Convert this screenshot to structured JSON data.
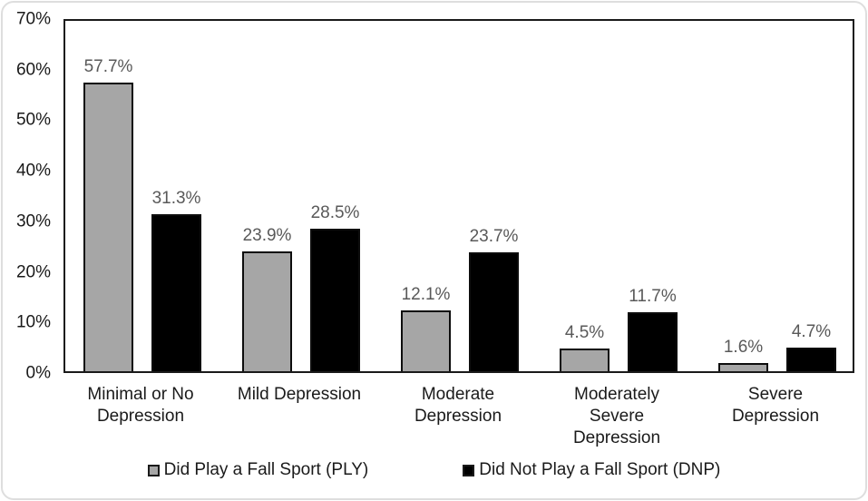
{
  "chart_data": {
    "type": "bar",
    "title": "",
    "categories": [
      "Minimal or No Depression",
      "Mild Depression",
      "Moderate Depression",
      "Moderately Severe Depression",
      "Severe Depression"
    ],
    "category_label_lines": [
      [
        "Minimal or No",
        "Depression"
      ],
      [
        "Mild Depression"
      ],
      [
        "Moderate",
        "Depression"
      ],
      [
        "Moderately",
        "Severe",
        "Depression"
      ],
      [
        "Severe",
        "Depression"
      ]
    ],
    "series": [
      {
        "name": "Did Play a Fall Sport (PLY)",
        "color": "#A6A6A6",
        "values": [
          57.7,
          23.9,
          12.1,
          4.5,
          1.6
        ],
        "labels": [
          "57.7%",
          "23.9%",
          "12.1%",
          "4.5%",
          "1.6%"
        ]
      },
      {
        "name": "Did Not Play a Fall Sport (DNP)",
        "color": "#000000",
        "values": [
          31.3,
          28.5,
          23.7,
          11.7,
          4.7
        ],
        "labels": [
          "31.3%",
          "28.5%",
          "23.7%",
          "11.7%",
          "4.7%"
        ]
      }
    ],
    "ylim": [
      0,
      70
    ],
    "ytick_step": 10,
    "ytick_labels": [
      "0%",
      "10%",
      "20%",
      "30%",
      "40%",
      "50%",
      "60%",
      "70%"
    ],
    "grid": false,
    "legend_position": "bottom",
    "colors": {
      "data_label": "#595959",
      "axis_text": "#1a1a1a",
      "frame": "#1a1a1a",
      "card_border": "#dedede"
    }
  }
}
